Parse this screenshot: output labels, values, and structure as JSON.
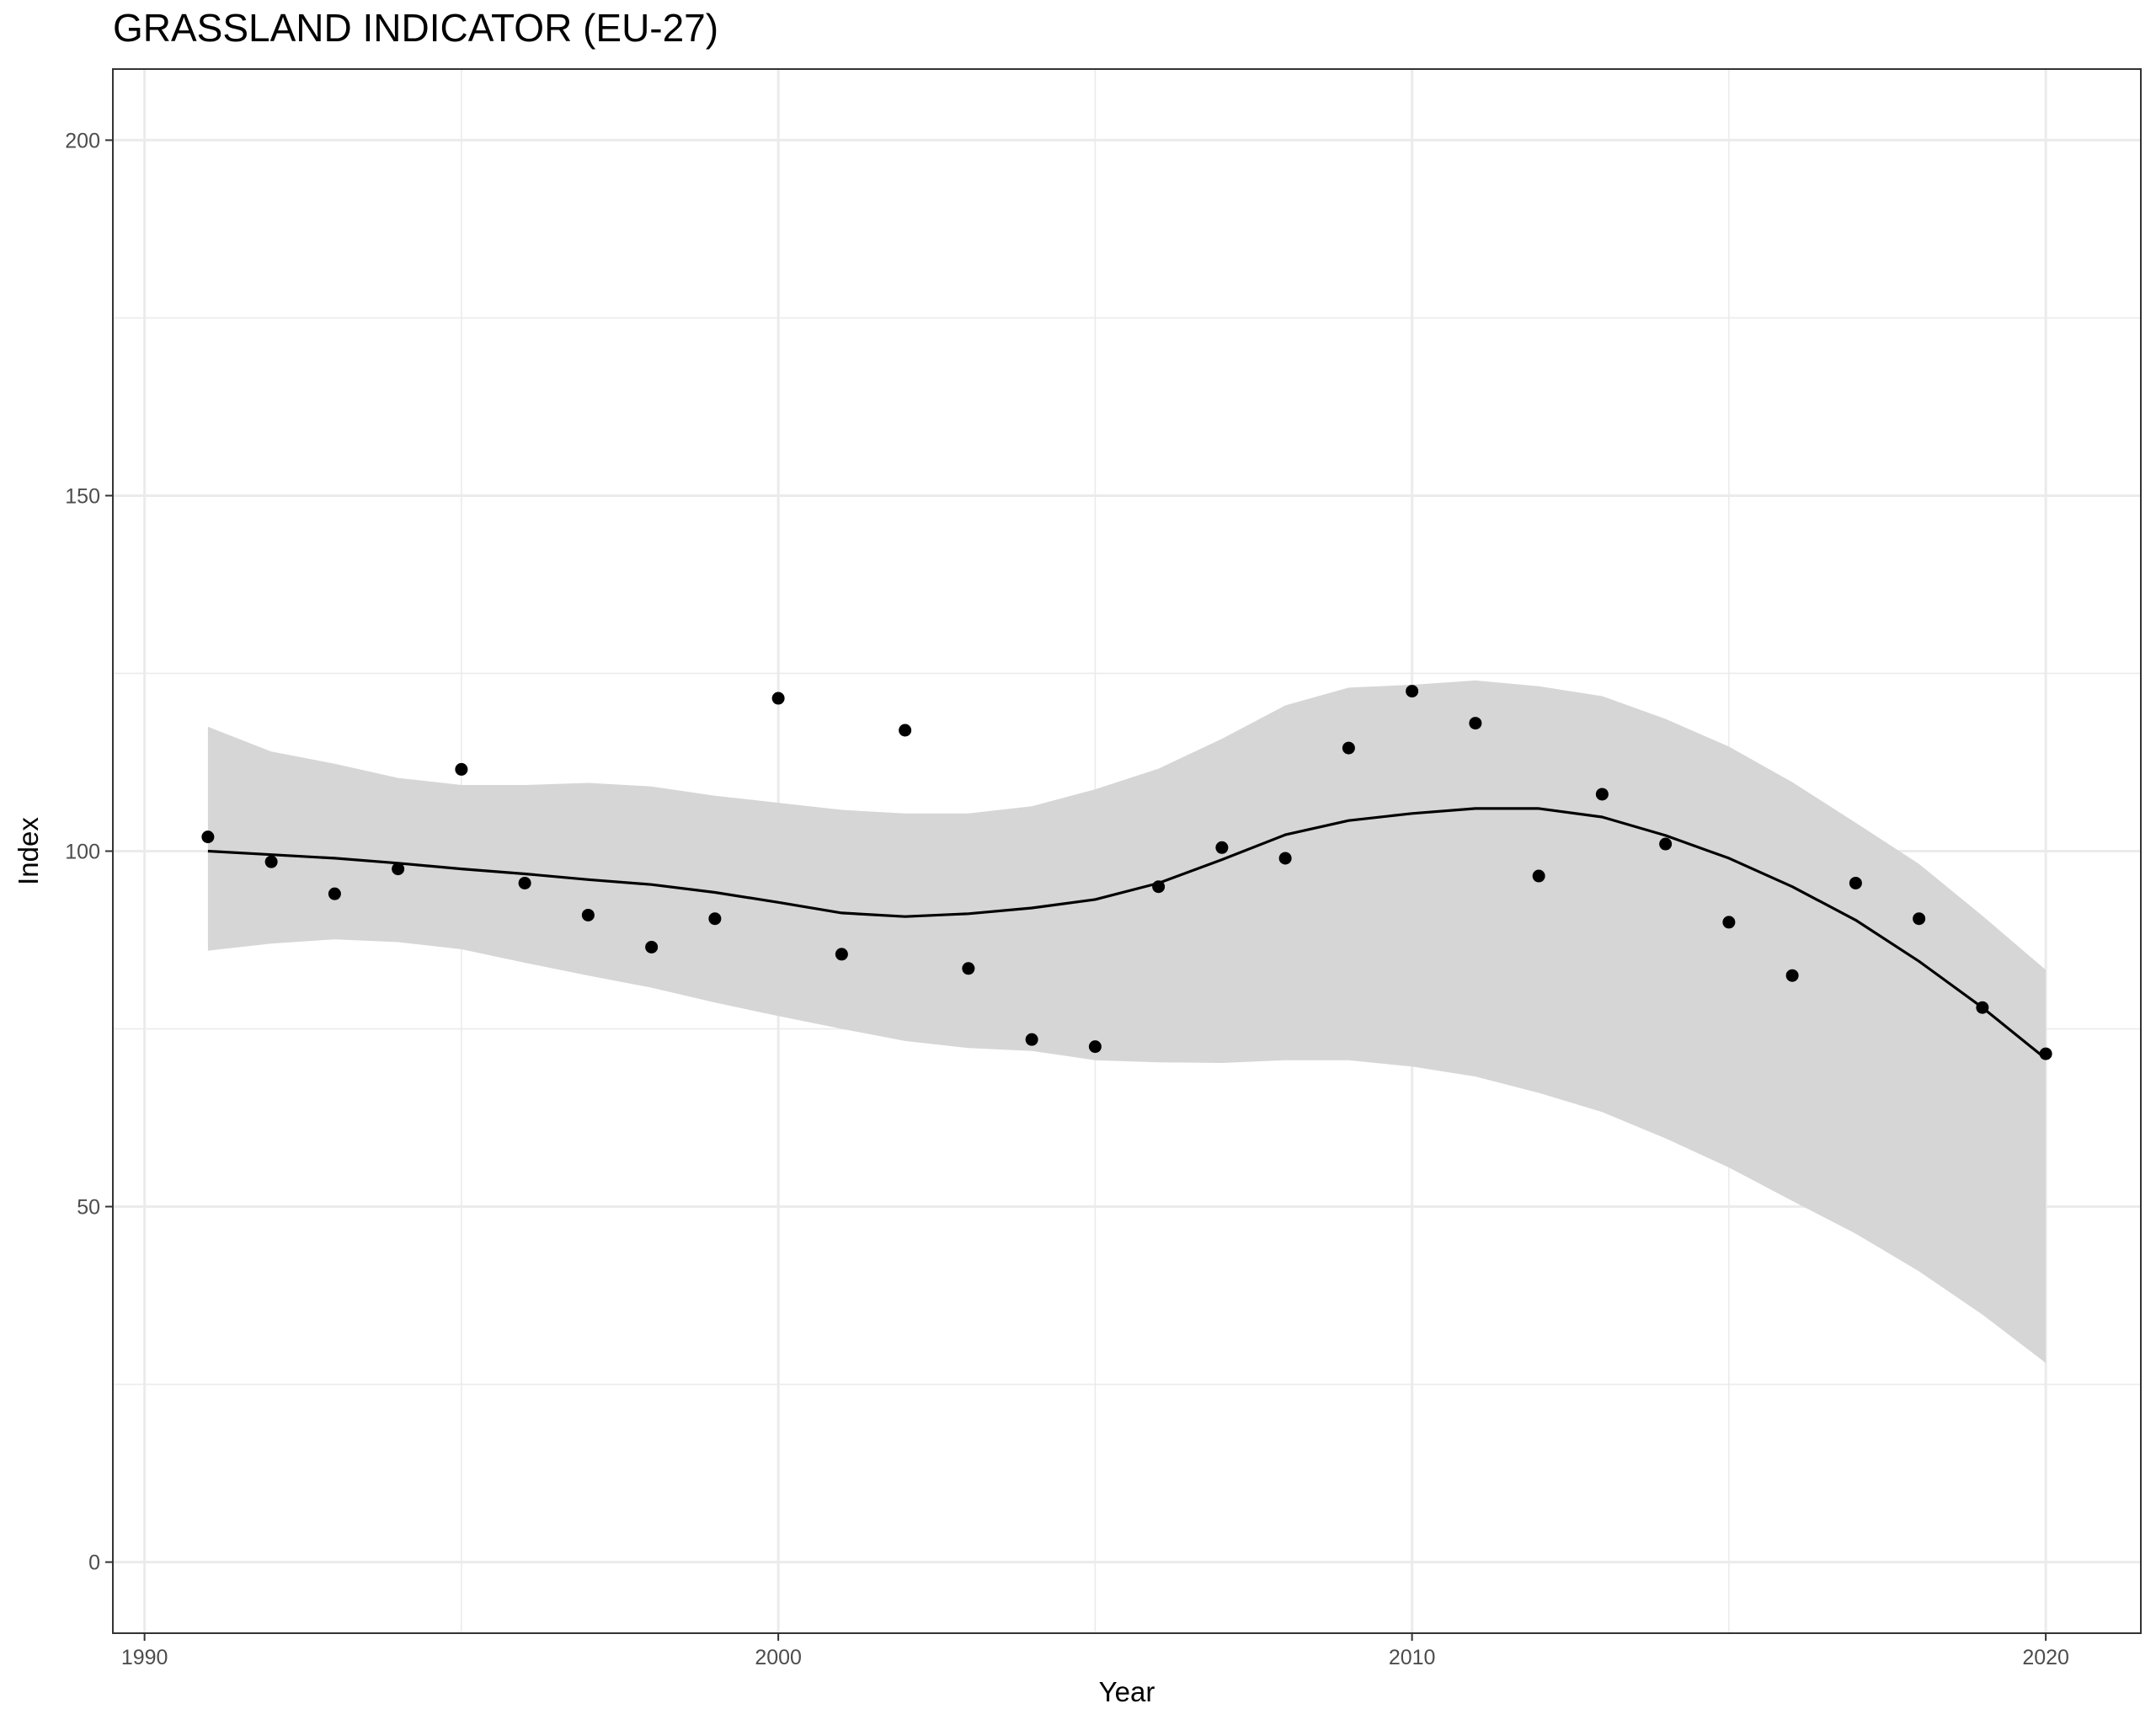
{
  "chart_data": {
    "type": "scatter",
    "title": "GRASSLAND INDICATOR (EU-27)",
    "xlabel": "Year",
    "ylabel": "Index",
    "xlim": [
      1989.5,
      2021.5
    ],
    "ylim": [
      -10,
      210
    ],
    "x_ticks": [
      1990,
      2000,
      2010,
      2020
    ],
    "y_ticks": [
      0,
      50,
      100,
      150,
      200
    ],
    "grid": true,
    "colors": {
      "points": "#000000",
      "trend": "#000000",
      "ribbon": "#d6d6d6",
      "grid": "#ebebeb",
      "panel_border": "#333333"
    },
    "points": {
      "x": [
        1991,
        1992,
        1993,
        1994,
        1995,
        1996,
        1997,
        1998,
        1999,
        2000,
        2001,
        2002,
        2003,
        2004,
        2005,
        2006,
        2007,
        2008,
        2009,
        2010,
        2011,
        2012,
        2013,
        2014,
        2015,
        2016,
        2017,
        2018,
        2019,
        2020
      ],
      "y": [
        102,
        98.5,
        94,
        97.5,
        111.5,
        95.5,
        91,
        86.5,
        90.5,
        121.5,
        85.5,
        117,
        83.5,
        73.5,
        72.5,
        95,
        100.5,
        99,
        114.5,
        122.5,
        118,
        96.5,
        108,
        101,
        90,
        82.5,
        95.5,
        90.5,
        78,
        71.5
      ]
    },
    "trend": {
      "x": [
        1991,
        1992,
        1993,
        1994,
        1995,
        1996,
        1997,
        1998,
        1999,
        2000,
        2001,
        2002,
        2003,
        2004,
        2005,
        2006,
        2007,
        2008,
        2009,
        2010,
        2011,
        2012,
        2013,
        2014,
        2015,
        2016,
        2017,
        2018,
        2019,
        2020
      ],
      "y": [
        100,
        99.5,
        99,
        98.3,
        97.5,
        96.8,
        96,
        95.3,
        94.2,
        92.8,
        91.3,
        90.8,
        91.2,
        92,
        93.2,
        95.5,
        98.8,
        102.3,
        104.3,
        105.3,
        106,
        106,
        104.8,
        102.2,
        99,
        95,
        90.3,
        84.5,
        78,
        70.8
      ]
    },
    "ribbon": {
      "x": [
        1991,
        1992,
        1993,
        1994,
        1995,
        1996,
        1997,
        1998,
        1999,
        2000,
        2001,
        2002,
        2003,
        2004,
        2005,
        2006,
        2007,
        2008,
        2009,
        2010,
        2011,
        2012,
        2013,
        2014,
        2015,
        2016,
        2017,
        2018,
        2019,
        2020
      ],
      "upper": [
        117.5,
        114,
        112.3,
        110.3,
        109.3,
        109.3,
        109.6,
        109.1,
        107.8,
        106.8,
        105.8,
        105.3,
        105.3,
        106.3,
        108.7,
        111.6,
        115.8,
        120.5,
        123,
        123.4,
        124,
        123.2,
        121.8,
        118.6,
        114.7,
        109.7,
        104,
        98.2,
        90.9,
        83.3
      ],
      "lower": [
        86,
        87,
        87.6,
        87.2,
        86.2,
        84.3,
        82.5,
        80.8,
        78.7,
        76.8,
        75,
        73.3,
        72.3,
        71.9,
        70.6,
        70.3,
        70.2,
        70.6,
        70.6,
        69.7,
        68.3,
        66,
        63.3,
        59.6,
        55.5,
        50.8,
        46.2,
        40.9,
        34.8,
        28
      ]
    }
  }
}
